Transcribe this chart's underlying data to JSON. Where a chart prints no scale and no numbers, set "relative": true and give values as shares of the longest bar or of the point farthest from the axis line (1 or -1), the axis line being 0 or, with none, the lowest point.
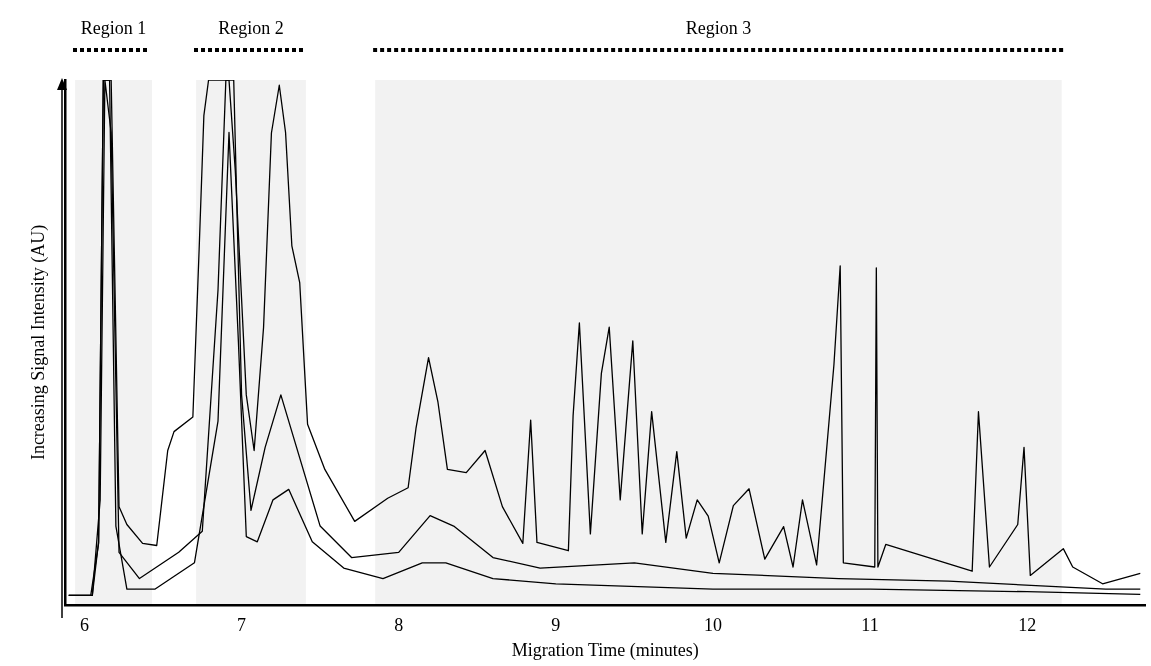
{
  "chart_data": {
    "type": "line",
    "xlabel": "Migration Time (minutes)",
    "ylabel": "Increasing Signal Intensity (AU)",
    "relative": true,
    "xlim": [
      5.88,
      12.75
    ],
    "xticks": [
      6,
      7,
      8,
      9,
      10,
      11,
      12
    ],
    "grid": false,
    "legend": false,
    "marker": "none",
    "line_style": "solid",
    "bands": [
      {
        "axis": "x",
        "from": 5.94,
        "to": 6.43,
        "label": "Region 1",
        "color": "#000000"
      },
      {
        "axis": "x",
        "from": 6.71,
        "to": 7.41,
        "label": "Region 2",
        "color": "#000000"
      },
      {
        "axis": "x",
        "from": 7.85,
        "to": 12.22,
        "label": "Region 3",
        "color": "#000000"
      }
    ],
    "series": [
      {
        "color": "#000000",
        "x": [
          5.9,
          6.04,
          6.09,
          6.12,
          6.17,
          6.22,
          6.27,
          6.37,
          6.46,
          6.53,
          6.57,
          6.69,
          6.73,
          6.76,
          6.79,
          6.92,
          6.96,
          7.03,
          7.08,
          7.14,
          7.19,
          7.24,
          7.28,
          7.32,
          7.37,
          7.42,
          7.53,
          7.72,
          7.93,
          8.06,
          8.11,
          8.19,
          8.25,
          8.31,
          8.43,
          8.55,
          8.66,
          8.79,
          8.84,
          8.88,
          9.08,
          9.11,
          9.15,
          9.22,
          9.29,
          9.34,
          9.41,
          9.49,
          9.55,
          9.61,
          9.7,
          9.77,
          9.83,
          9.9,
          9.97,
          10.04,
          10.13,
          10.23,
          10.33,
          10.45,
          10.51,
          10.57,
          10.66,
          10.77,
          10.81,
          10.83,
          11.03,
          11.04,
          11.05,
          11.1,
          11.65,
          11.69,
          11.76,
          11.94,
          11.98,
          12.02,
          12.23,
          12.29,
          12.48,
          12.72
        ],
        "values": [
          0.018,
          0.018,
          0.117,
          1,
          1,
          0.187,
          0.153,
          0.117,
          0.113,
          0.294,
          0.33,
          0.358,
          0.678,
          0.932,
          1,
          1,
          0.827,
          0.4,
          0.294,
          0.529,
          0.899,
          0.99,
          0.9,
          0.684,
          0.614,
          0.344,
          0.258,
          0.159,
          0.203,
          0.223,
          0.336,
          0.471,
          0.386,
          0.258,
          0.252,
          0.294,
          0.187,
          0.117,
          0.352,
          0.119,
          0.103,
          0.36,
          0.537,
          0.135,
          0.441,
          0.529,
          0.2,
          0.503,
          0.135,
          0.368,
          0.119,
          0.292,
          0.127,
          0.2,
          0.169,
          0.08,
          0.189,
          0.221,
          0.087,
          0.149,
          0.072,
          0.2,
          0.076,
          0.457,
          0.646,
          0.08,
          0.072,
          0.642,
          0.072,
          0.115,
          0.064,
          0.368,
          0.072,
          0.153,
          0.3,
          0.056,
          0.107,
          0.072,
          0.04,
          0.06
        ]
      },
      {
        "color": "#000000",
        "x": [
          5.9,
          6.05,
          6.1,
          6.13,
          6.17,
          6.22,
          6.35,
          6.6,
          6.75,
          6.85,
          6.9,
          6.95,
          7.0,
          7.06,
          7.15,
          7.25,
          7.35,
          7.5,
          7.7,
          8.0,
          8.2,
          8.35,
          8.6,
          8.9,
          9.5,
          10.0,
          10.8,
          11.5,
          12.5,
          12.72
        ],
        "values": [
          0.018,
          0.018,
          0.2,
          1,
          0.9,
          0.1,
          0.05,
          0.1,
          0.14,
          0.6,
          1,
          1,
          0.4,
          0.18,
          0.3,
          0.4,
          0.3,
          0.15,
          0.09,
          0.1,
          0.17,
          0.15,
          0.09,
          0.07,
          0.08,
          0.06,
          0.05,
          0.045,
          0.03,
          0.03
        ]
      },
      {
        "color": "#000000",
        "x": [
          5.9,
          6.05,
          6.09,
          6.12,
          6.16,
          6.2,
          6.27,
          6.45,
          6.55,
          6.7,
          6.85,
          6.92,
          6.98,
          7.03,
          7.1,
          7.2,
          7.3,
          7.45,
          7.65,
          7.9,
          8.15,
          8.3,
          8.6,
          9.0,
          10.0,
          11.0,
          12.0,
          12.72
        ],
        "values": [
          0.018,
          0.018,
          0.12,
          1,
          1,
          0.15,
          0.03,
          0.03,
          0.05,
          0.08,
          0.35,
          0.9,
          0.5,
          0.13,
          0.12,
          0.2,
          0.22,
          0.12,
          0.07,
          0.05,
          0.08,
          0.08,
          0.05,
          0.04,
          0.03,
          0.03,
          0.025,
          0.02
        ]
      }
    ]
  }
}
